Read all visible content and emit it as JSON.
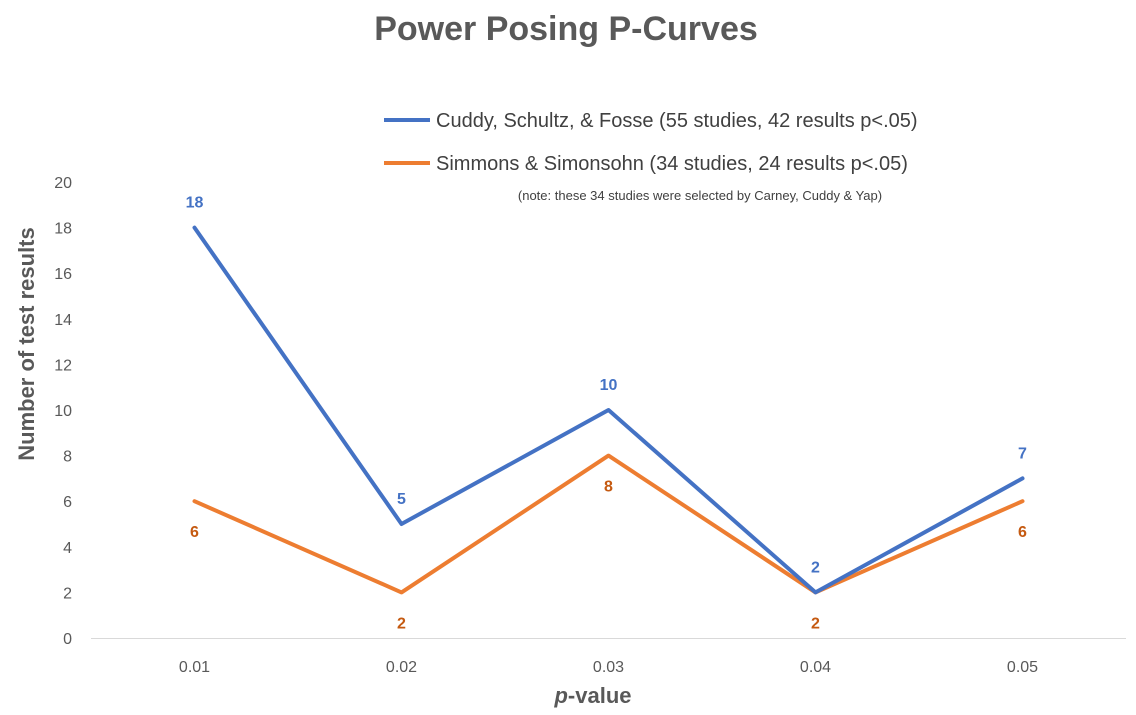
{
  "chart_data": {
    "type": "line",
    "title": "Power Posing P-Curves",
    "xlabel_italic": "p",
    "xlabel_rest": "-value",
    "ylabel": "Number of test results",
    "categories": [
      "0.01",
      "0.02",
      "0.03",
      "0.04",
      "0.05"
    ],
    "ylim": [
      0,
      20
    ],
    "yticks": [
      "0",
      "2",
      "4",
      "6",
      "8",
      "10",
      "12",
      "14",
      "16",
      "18",
      "20"
    ],
    "grid": false,
    "legend_position": "top-right",
    "note": "(note: these 34 studies were selected by Carney, Cuddy & Yap)",
    "series": [
      {
        "name": "Cuddy, Schultz, & Fosse (55 studies, 42 results p<.05)",
        "color": "#4472C4",
        "values": [
          18,
          5,
          10,
          2,
          7
        ],
        "labels": [
          "18",
          "5",
          "10",
          "2",
          "7"
        ]
      },
      {
        "name": "Simmons & Simonsohn (34 studies, 24 results p<.05)",
        "color": "#ED7D31",
        "label_color": "#C55A11",
        "values": [
          6,
          2,
          8,
          2,
          6
        ],
        "labels": [
          "6",
          "2",
          "8",
          "2",
          "6"
        ]
      }
    ]
  }
}
